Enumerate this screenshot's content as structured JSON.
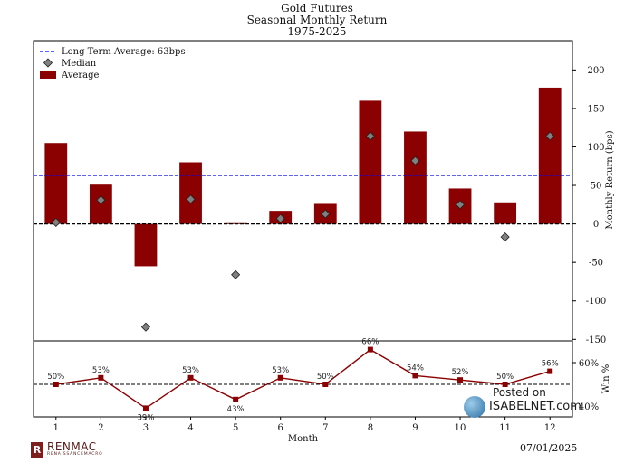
{
  "title": {
    "line1": "Gold Futures",
    "line2": "Seasonal Monthly Return",
    "line3": "1975-2025"
  },
  "colors": {
    "bar": "#8b0000",
    "average_line": "#0000ff",
    "median_marker": "#808080",
    "win_line": "#8b0000"
  },
  "chart_data": [
    {
      "type": "bar",
      "categories": [
        "1",
        "2",
        "3",
        "4",
        "5",
        "6",
        "7",
        "8",
        "9",
        "10",
        "11",
        "12"
      ],
      "series": [
        {
          "name": "Average",
          "values": [
            105,
            51,
            -55,
            80,
            1,
            17,
            26,
            160,
            120,
            46,
            28,
            177
          ]
        },
        {
          "name": "Median",
          "marker": "diamond",
          "values": [
            2,
            31,
            -134,
            32,
            -66,
            7,
            13,
            114,
            82,
            25,
            -17,
            114
          ]
        }
      ],
      "reference_line": {
        "name": "Long Term Average: 63bps",
        "value": 63,
        "style": "dashed"
      },
      "ylabel": "Monthly Return (bps)",
      "yticks": [
        -150,
        -100,
        -50,
        0,
        50,
        100,
        150,
        200
      ],
      "ylim": [
        -152,
        238
      ],
      "legend": {
        "placement": "top-left",
        "entries": [
          "Long Term Average: 63bps",
          "Median",
          "Average"
        ]
      }
    },
    {
      "type": "line",
      "x": [
        "1",
        "2",
        "3",
        "4",
        "5",
        "6",
        "7",
        "8",
        "9",
        "10",
        "11",
        "12"
      ],
      "series": [
        {
          "values": [
            50,
            53,
            39,
            53,
            43,
            53,
            50,
            66,
            54,
            52,
            50,
            56
          ],
          "labels": [
            "50%",
            "53%",
            "39%",
            "53%",
            "43%",
            "53%",
            "50%",
            "66%",
            "54%",
            "52%",
            "50%",
            "56%"
          ]
        }
      ],
      "reference_line": {
        "value": 50,
        "style": "dashed"
      },
      "xlabel": "Month",
      "ylabel": "Win %",
      "yticks": [
        "40%",
        "60%"
      ],
      "ylim": [
        35,
        70
      ]
    }
  ],
  "footer": {
    "brand_initial": "R",
    "brand": "RENMAC",
    "brand_sub": "RENAISSANCEMACRO",
    "date": "07/01/2025"
  },
  "watermark": {
    "line1": "Posted on",
    "line2": "ISABELNET.com"
  }
}
